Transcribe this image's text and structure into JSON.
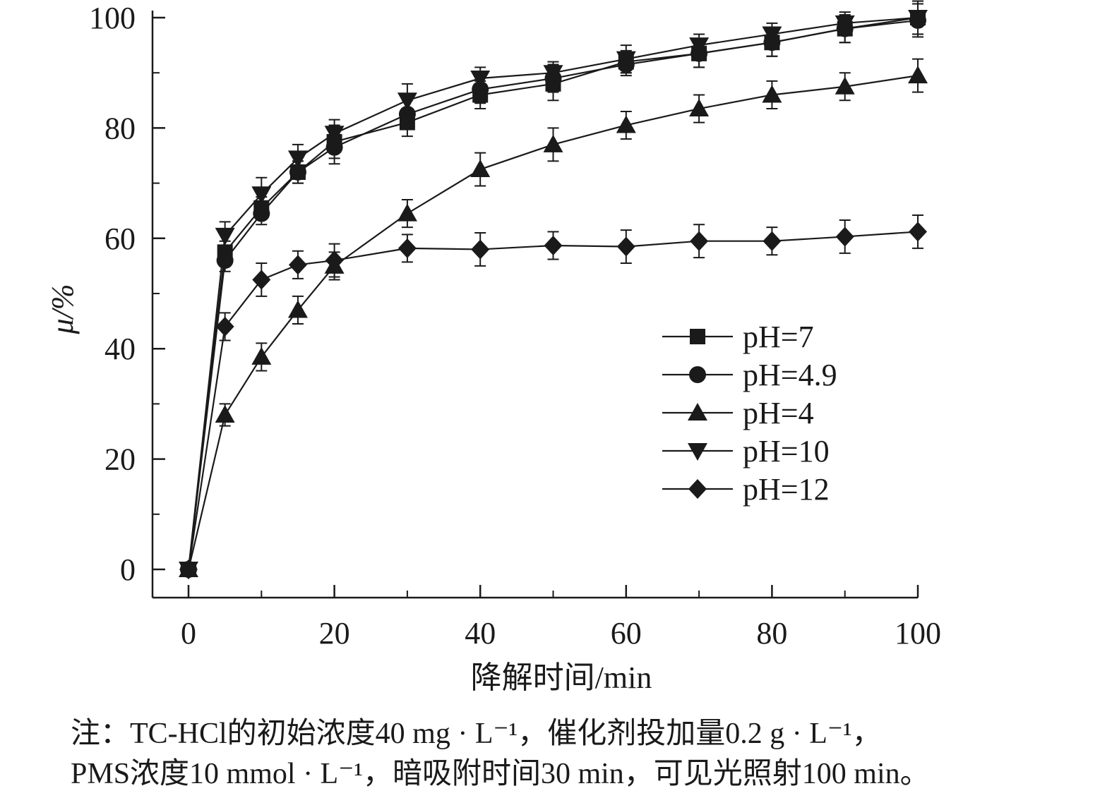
{
  "chart_data": {
    "type": "line",
    "title": "",
    "xlabel": "降解时间/min",
    "ylabel": "μ/%",
    "xlim": [
      0,
      100
    ],
    "ylim": [
      0,
      100
    ],
    "x_ticks": [
      0,
      20,
      40,
      60,
      80,
      100
    ],
    "y_ticks": [
      0,
      20,
      40,
      60,
      80,
      100
    ],
    "x": [
      0,
      5,
      10,
      15,
      20,
      30,
      40,
      50,
      60,
      70,
      80,
      90,
      100
    ],
    "legend_position": "center-right",
    "marker_color": "#1a1a1a",
    "series": [
      {
        "name": "pH=7",
        "marker": "square",
        "values": [
          0,
          57.5,
          65.5,
          72,
          77.5,
          81,
          86,
          88,
          92,
          93.5,
          95.5,
          98,
          100
        ],
        "errors": [
          0,
          2,
          2,
          2,
          3,
          2.5,
          2.5,
          3,
          2,
          2.5,
          2.5,
          2.5,
          3
        ]
      },
      {
        "name": "pH=4.9",
        "marker": "circle",
        "values": [
          0,
          56,
          64.5,
          72,
          76.5,
          82.5,
          87,
          89,
          91.5,
          93.5,
          95.5,
          98,
          99.5
        ],
        "errors": [
          0,
          2,
          2,
          2,
          3,
          2.5,
          2.5,
          2.5,
          2,
          2.5,
          2.5,
          2.5,
          3
        ]
      },
      {
        "name": "pH=4",
        "marker": "triangle-up",
        "values": [
          0,
          28,
          38.5,
          47,
          55,
          64.5,
          72.5,
          77,
          80.5,
          83.5,
          86,
          87.5,
          89.5
        ],
        "errors": [
          0,
          2,
          2.5,
          2.5,
          2.5,
          2.5,
          3,
          3,
          2.5,
          2.5,
          2.5,
          2.5,
          3
        ]
      },
      {
        "name": "pH=10",
        "marker": "triangle-down",
        "values": [
          0,
          60.5,
          68,
          74.5,
          79,
          85,
          89,
          90,
          92.5,
          95,
          97,
          99,
          100
        ],
        "errors": [
          0,
          2.5,
          3,
          2.5,
          2.5,
          3,
          2,
          2,
          2.5,
          2,
          2,
          2,
          3
        ]
      },
      {
        "name": "pH=12",
        "marker": "diamond",
        "values": [
          0,
          44,
          52.5,
          55.2,
          56,
          58.2,
          58,
          58.7,
          58.5,
          59.5,
          59.5,
          60.3,
          61.2
        ],
        "errors": [
          0,
          2.5,
          3,
          2.5,
          3,
          2.5,
          3,
          2.5,
          3,
          3,
          2.5,
          3,
          3
        ]
      }
    ]
  },
  "note": {
    "line1": "注：TC-HCl的初始浓度40 mg · L⁻¹，催化剂投加量0.2 g · L⁻¹，",
    "line2": "PMS浓度10 mmol · L⁻¹，暗吸附时间30 min，可见光照射100 min。"
  }
}
